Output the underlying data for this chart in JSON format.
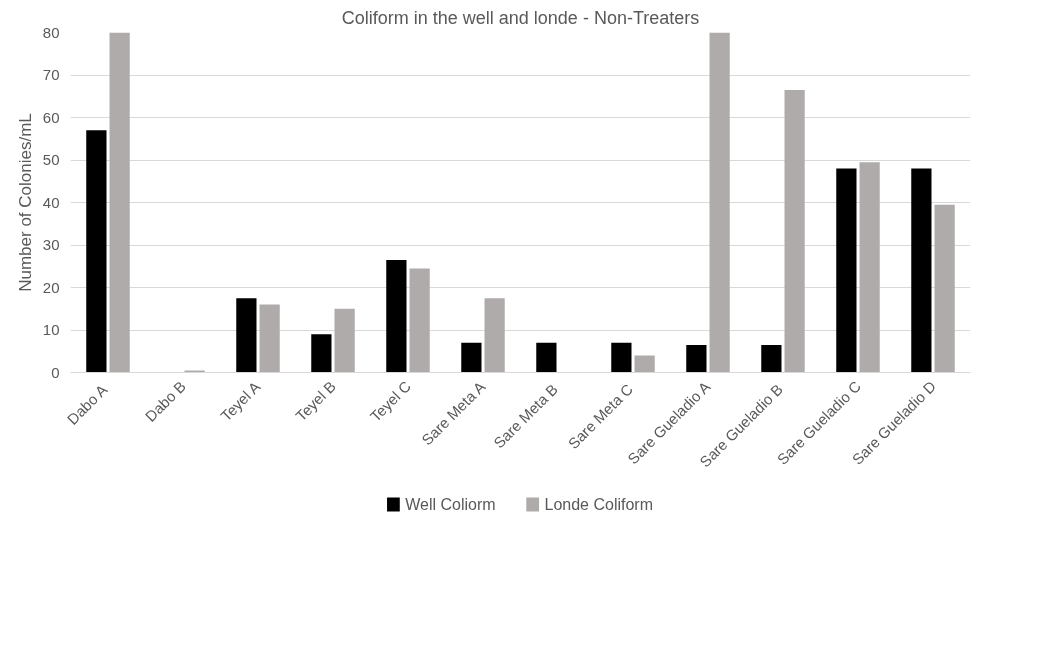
{
  "chart_data": {
    "type": "bar",
    "title": "Coliform in the well and londe - Non-Treaters",
    "ylabel": "Number of Colonies/mL",
    "categories": [
      "Dabo  A",
      "Dabo B",
      "Teyel A",
      "Teyel B",
      "Teyel C",
      "Sare Meta A",
      "Sare Meta  B",
      "Sare Meta  C",
      "Sare Gueladio A",
      "Sare Gueladio  B",
      "Sare Gueladio C",
      "Sare Gueladio D"
    ],
    "series": [
      {
        "name": "Well Coliorm",
        "color": "#000000",
        "values": [
          57,
          0,
          17.5,
          9,
          26.5,
          7,
          7,
          7,
          6.5,
          6.5,
          48,
          48
        ]
      },
      {
        "name": "Londe Coliform",
        "color": "#afabab",
        "values": [
          80,
          0.5,
          16,
          15,
          24.5,
          17.5,
          0,
          4,
          80,
          66.5,
          49.5,
          39.5
        ]
      }
    ],
    "ylim": [
      0,
      80
    ],
    "yticks": [
      0,
      10,
      20,
      30,
      40,
      50,
      60,
      70,
      80
    ],
    "grid": "y",
    "legend": "bottom"
  }
}
